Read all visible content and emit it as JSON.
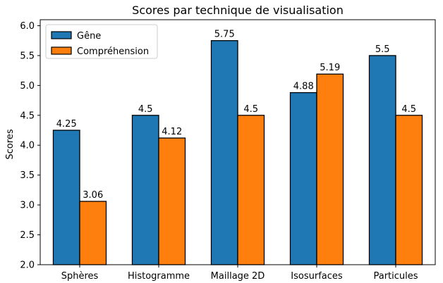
{
  "chart_data": {
    "type": "bar",
    "title": "Scores par technique de visualisation",
    "xlabel": "",
    "ylabel": "Scores",
    "categories": [
      "Sphères",
      "Histogramme",
      "Maillage 2D",
      "Isosurfaces",
      "Particules"
    ],
    "series": [
      {
        "name": "Gêne",
        "color": "#1f77b4",
        "values": [
          4.25,
          4.5,
          5.75,
          4.88,
          5.5
        ],
        "labels": [
          "4.25",
          "4.5",
          "5.75",
          "4.88",
          "5.5"
        ]
      },
      {
        "name": "Compréhension",
        "color": "#ff7f0e",
        "values": [
          3.06,
          4.12,
          4.5,
          5.19,
          4.5
        ],
        "labels": [
          "3.06",
          "4.12",
          "4.5",
          "5.19",
          "4.5"
        ]
      }
    ],
    "ylim": [
      2.0,
      6.1
    ],
    "yticks": [
      "2.0",
      "2.5",
      "3.0",
      "3.5",
      "4.0",
      "4.5",
      "5.0",
      "5.5",
      "6.0"
    ],
    "legend_position": "top-left",
    "grid": false
  }
}
